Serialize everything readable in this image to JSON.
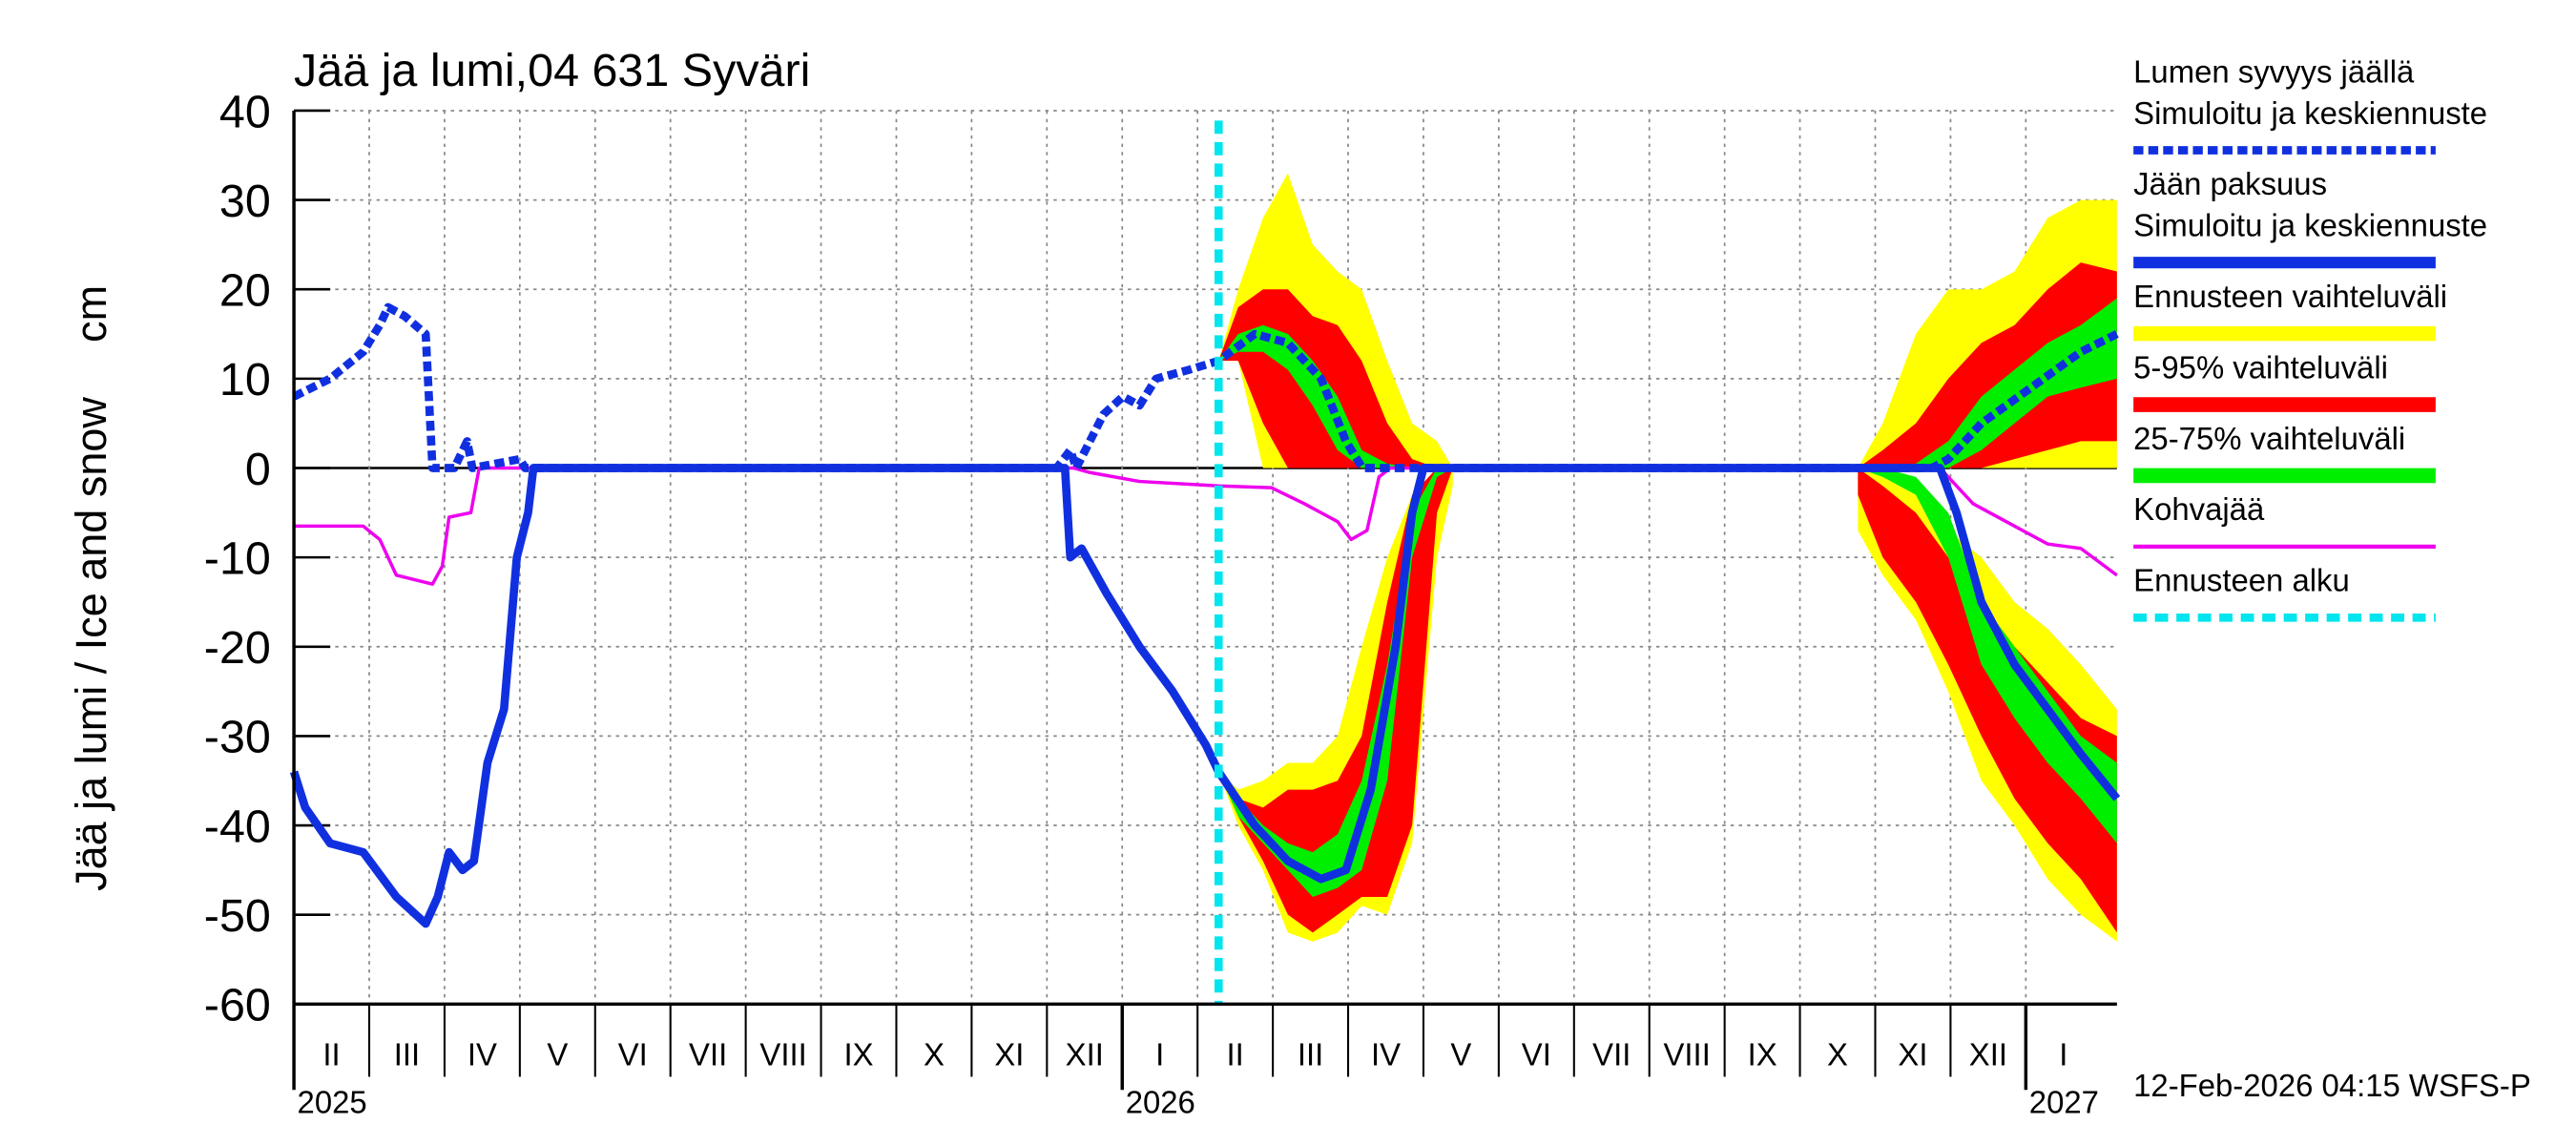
{
  "chart_data": {
    "type": "line",
    "title": "Jää ja lumi,04 631 Syväri",
    "y_label": "Jää ja lumi / Ice and snow",
    "y_unit": "cm",
    "footer": "12-Feb-2026 04:15 WSFS-P",
    "ylim": [
      -60,
      40
    ],
    "yticks": [
      -60,
      -50,
      -40,
      -30,
      -20,
      -10,
      0,
      10,
      20,
      30,
      40
    ],
    "xlim": [
      0,
      24.21
    ],
    "xticks": [
      {
        "value": 0,
        "label": "II"
      },
      {
        "value": 1,
        "label": "III"
      },
      {
        "value": 2,
        "label": "IV"
      },
      {
        "value": 3,
        "label": "V"
      },
      {
        "value": 4,
        "label": "VI"
      },
      {
        "value": 5,
        "label": "VII"
      },
      {
        "value": 6,
        "label": "VIII"
      },
      {
        "value": 7,
        "label": "IX"
      },
      {
        "value": 8,
        "label": "X"
      },
      {
        "value": 9,
        "label": "XI"
      },
      {
        "value": 10,
        "label": "XII"
      },
      {
        "value": 11,
        "label": "I"
      },
      {
        "value": 12,
        "label": "II"
      },
      {
        "value": 13,
        "label": "III"
      },
      {
        "value": 14,
        "label": "IV"
      },
      {
        "value": 15,
        "label": "V"
      },
      {
        "value": 16,
        "label": "VI"
      },
      {
        "value": 17,
        "label": "VII"
      },
      {
        "value": 18,
        "label": "VIII"
      },
      {
        "value": 19,
        "label": "IX"
      },
      {
        "value": 20,
        "label": "X"
      },
      {
        "value": 21,
        "label": "XI"
      },
      {
        "value": 22,
        "label": "XII"
      },
      {
        "value": 23,
        "label": "I"
      }
    ],
    "year_labels": [
      {
        "value": 0,
        "label": "2025"
      },
      {
        "value": 11,
        "label": "2026"
      },
      {
        "value": 23,
        "label": "2027"
      }
    ],
    "grid": true,
    "forecast_start": {
      "name": "Ennusteen alku",
      "x": 12.28,
      "color": "#00e5ee"
    },
    "forecast_x": [
      12.28,
      12.54,
      12.87,
      13.2,
      13.53,
      13.86,
      14.18,
      14.52,
      14.85,
      15.18,
      15.39,
      18,
      20.77,
      21.1,
      21.54,
      21.97,
      22.41,
      22.85,
      23.29,
      23.73,
      24.21
    ],
    "bands": [
      {
        "name": "Ennusteen vaihteluväli",
        "color": "#ffff00",
        "parts": [
          {
            "high": [
              12,
              20,
              28,
              33,
              25,
              22,
              20,
              12,
              5,
              3,
              0,
              null,
              0,
              5,
              15,
              20,
              20,
              22,
              28,
              30,
              30
            ],
            "low": [
              12,
              12,
              0,
              0,
              0,
              0,
              0,
              0,
              0,
              0,
              0,
              null,
              0,
              0,
              0,
              0,
              0,
              0,
              0,
              0,
              0
            ]
          },
          {
            "high": [
              -34,
              -36,
              -35,
              -33,
              -33,
              -30,
              -20,
              -10,
              -3,
              0,
              0,
              null,
              0,
              -1,
              -3,
              -7,
              -10,
              -15,
              -18,
              -22,
              -27
            ],
            "low": [
              -34,
              -40,
              -45,
              -52,
              -53,
              -52,
              -49,
              -50,
              -42,
              -10,
              -2,
              null,
              -7,
              -12,
              -17,
              -25,
              -35,
              -40,
              -46,
              -50,
              -53
            ]
          }
        ]
      },
      {
        "name": "5-95% vaihteluväli",
        "color": "#ff0000",
        "parts": [
          {
            "high": [
              12,
              18,
              20,
              20,
              17,
              16,
              12,
              5,
              1,
              0,
              0,
              null,
              0,
              2,
              5,
              10,
              14,
              16,
              20,
              23,
              22
            ],
            "low": [
              12,
              12,
              5,
              0,
              0,
              0,
              0,
              0,
              0,
              0,
              0,
              null,
              0,
              0,
              0,
              0,
              0,
              1,
              2,
              3,
              3
            ]
          },
          {
            "high": [
              -34,
              -37,
              -38,
              -36,
              -36,
              -35,
              -30,
              -15,
              -3,
              0,
              0,
              null,
              0,
              -2,
              -5,
              -10,
              -15,
              -20,
              -24,
              -28,
              -30
            ],
            "low": [
              -34,
              -39,
              -44,
              -50,
              -52,
              -50,
              -48,
              -48,
              -40,
              -5,
              0,
              null,
              -3,
              -10,
              -15,
              -22,
              -30,
              -37,
              -42,
              -46,
              -52
            ]
          }
        ]
      },
      {
        "name": "25-75% vaihteluväli",
        "color": "#00ee00",
        "parts": [
          {
            "high": [
              12,
              15,
              16,
              15,
              12,
              8,
              2,
              0.5,
              0,
              0,
              0,
              null,
              0,
              0,
              0.5,
              3,
              8,
              11,
              14,
              16,
              19
            ],
            "low": [
              12,
              13,
              13,
              11,
              7,
              2,
              0,
              0,
              0,
              0,
              0,
              null,
              0,
              0,
              0,
              0,
              2,
              5,
              8,
              9,
              10
            ]
          },
          {
            "high": [
              -34,
              -37,
              -40,
              -42,
              -43,
              -41,
              -35,
              -22,
              -5,
              0,
              0,
              null,
              0,
              0,
              -1,
              -5,
              -15,
              -20,
              -25,
              -30,
              -33
            ],
            "low": [
              -34,
              -39,
              -42,
              -45,
              -48,
              -47,
              -45,
              -35,
              -10,
              -1,
              0,
              null,
              0,
              -1,
              -3,
              -10,
              -22,
              -28,
              -33,
              -37,
              -42
            ]
          }
        ]
      }
    ],
    "series": [
      {
        "name": "Lumen syvyys jäällä",
        "note": "Simuloitu ja keskiennuste",
        "color": "#1030e0",
        "dashed": true,
        "x": [
          0,
          0.48,
          0.92,
          1.14,
          1.25,
          1.47,
          1.75,
          1.84,
          2.13,
          2.3,
          2.37,
          3.0,
          3.07,
          10.13,
          10.31,
          10.39,
          10.75,
          11.01,
          11.23,
          11.45,
          11.89,
          12.28,
          12.76,
          13.2,
          13.64,
          13.97,
          14.19,
          14.52,
          21.75,
          21.97,
          22.41,
          23.07,
          23.73,
          24.21
        ],
        "values": [
          8,
          10,
          13,
          16,
          18,
          17,
          15,
          0,
          0,
          3,
          0,
          1,
          0,
          0,
          2,
          0,
          6,
          8,
          7,
          10,
          11,
          12,
          15,
          14,
          10,
          3,
          0,
          0,
          0,
          1,
          5,
          9,
          13,
          15
        ]
      },
      {
        "name": "Jään paksuus",
        "note": "Simuloitu ja keskiennuste",
        "color": "#1030e0",
        "dashed": false,
        "x": [
          0,
          0.15,
          0.48,
          0.92,
          1.36,
          1.75,
          1.91,
          2.06,
          2.24,
          2.39,
          2.57,
          2.79,
          2.96,
          3.11,
          3.18,
          10.24,
          10.31,
          10.46,
          10.79,
          11.23,
          11.67,
          12.11,
          12.28,
          12.76,
          13.2,
          13.64,
          13.97,
          14.3,
          14.63,
          14.85,
          15.0,
          21.86,
          22.08,
          22.41,
          22.85,
          23.29,
          23.73,
          24.21
        ],
        "values": [
          -34,
          -38,
          -42,
          -43,
          -48,
          -51,
          -48,
          -43,
          -45,
          -44,
          -33,
          -27,
          -10,
          -5,
          0,
          0,
          -10,
          -9,
          -14,
          -20,
          -25,
          -31,
          -34,
          -40,
          -44,
          -46,
          -45,
          -36,
          -20,
          -5,
          0,
          0,
          -5,
          -15,
          -22,
          -27,
          -32,
          -37
        ]
      },
      {
        "name": "Kohvajää",
        "color": "#ee00ee",
        "dashed": false,
        "x": [
          0,
          0.92,
          1.14,
          1.36,
          1.84,
          1.97,
          2.06,
          2.35,
          2.46,
          10.35,
          10.57,
          10.9,
          11.23,
          12.28,
          12.98,
          13.42,
          13.86,
          14.04,
          14.25,
          14.41,
          14.56,
          21.86,
          22.3,
          22.74,
          23.29,
          23.73,
          24.21
        ],
        "values": [
          -6.5,
          -6.5,
          -8,
          -12,
          -13,
          -11,
          -5.5,
          -5,
          0,
          0,
          -0.5,
          -1,
          -1.5,
          -2,
          -2.2,
          -4,
          -6,
          -8,
          -7,
          -1,
          0,
          0,
          -4,
          -6,
          -8.5,
          -9,
          -12
        ]
      }
    ]
  }
}
